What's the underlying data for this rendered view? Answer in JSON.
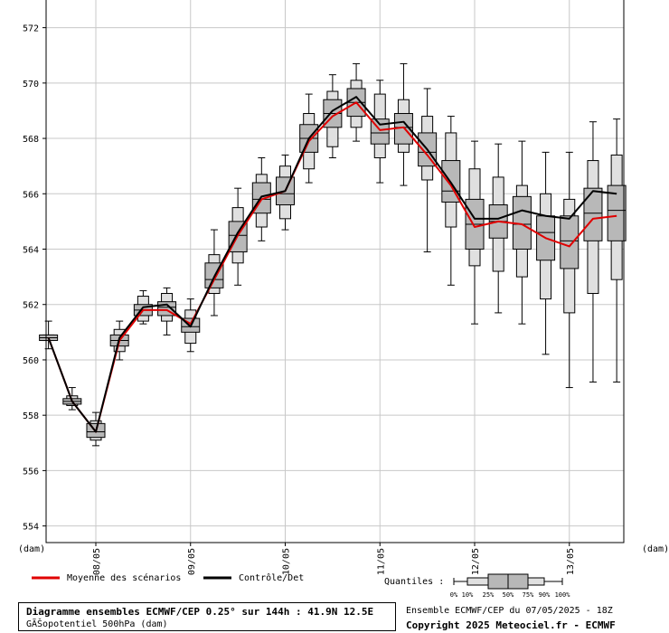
{
  "chart_data": {
    "type": "boxplot-ensemble",
    "ylabel_left": "(dam)",
    "ylabel_right": "(dam)",
    "ylim": [
      553.4,
      573
    ],
    "yticks": [
      554,
      556,
      558,
      560,
      562,
      564,
      566,
      568,
      570,
      572
    ],
    "xticks": [
      {
        "label": "08/05",
        "x": 2
      },
      {
        "label": "09/05",
        "x": 6
      },
      {
        "label": "10/05",
        "x": 10
      },
      {
        "label": "11/05",
        "x": 14
      },
      {
        "label": "12/05",
        "x": 18
      },
      {
        "label": "13/05",
        "x": 22
      }
    ],
    "xlim": [
      -0.1,
      24.3
    ],
    "grid": true,
    "boxes": [
      {
        "x": 0,
        "p0": 560.4,
        "p10": 560.7,
        "p25": 560.7,
        "p50": 560.8,
        "p75": 560.9,
        "p90": 560.9,
        "p100": 561.4
      },
      {
        "x": 1,
        "p0": 558.2,
        "p10": 558.35,
        "p25": 558.4,
        "p50": 558.5,
        "p75": 558.6,
        "p90": 558.7,
        "p100": 559.0
      },
      {
        "x": 2,
        "p0": 556.9,
        "p10": 557.1,
        "p25": 557.2,
        "p50": 557.4,
        "p75": 557.7,
        "p90": 557.8,
        "p100": 558.1
      },
      {
        "x": 3,
        "p0": 560.0,
        "p10": 560.3,
        "p25": 560.5,
        "p50": 560.7,
        "p75": 560.9,
        "p90": 561.1,
        "p100": 561.4
      },
      {
        "x": 4,
        "p0": 561.3,
        "p10": 561.4,
        "p25": 561.6,
        "p50": 561.8,
        "p75": 562.0,
        "p90": 562.3,
        "p100": 562.5
      },
      {
        "x": 5,
        "p0": 560.9,
        "p10": 561.4,
        "p25": 561.6,
        "p50": 561.9,
        "p75": 562.1,
        "p90": 562.4,
        "p100": 562.6
      },
      {
        "x": 6,
        "p0": 560.3,
        "p10": 560.6,
        "p25": 561.0,
        "p50": 561.2,
        "p75": 561.5,
        "p90": 561.8,
        "p100": 562.2
      },
      {
        "x": 7,
        "p0": 561.6,
        "p10": 562.4,
        "p25": 562.6,
        "p50": 562.9,
        "p75": 563.5,
        "p90": 563.8,
        "p100": 564.7
      },
      {
        "x": 8,
        "p0": 562.7,
        "p10": 563.5,
        "p25": 563.9,
        "p50": 564.5,
        "p75": 565.0,
        "p90": 565.5,
        "p100": 566.2
      },
      {
        "x": 9,
        "p0": 564.3,
        "p10": 564.8,
        "p25": 565.3,
        "p50": 565.8,
        "p75": 566.4,
        "p90": 566.7,
        "p100": 567.3
      },
      {
        "x": 10,
        "p0": 564.7,
        "p10": 565.1,
        "p25": 565.6,
        "p50": 566.0,
        "p75": 566.6,
        "p90": 567.0,
        "p100": 567.4
      },
      {
        "x": 11,
        "p0": 566.4,
        "p10": 566.9,
        "p25": 567.5,
        "p50": 568.0,
        "p75": 568.5,
        "p90": 568.9,
        "p100": 569.6
      },
      {
        "x": 12,
        "p0": 567.3,
        "p10": 567.7,
        "p25": 568.4,
        "p50": 568.9,
        "p75": 569.4,
        "p90": 569.7,
        "p100": 570.3
      },
      {
        "x": 13,
        "p0": 567.9,
        "p10": 568.4,
        "p25": 568.8,
        "p50": 569.3,
        "p75": 569.8,
        "p90": 570.1,
        "p100": 570.7
      },
      {
        "x": 14,
        "p0": 566.4,
        "p10": 567.3,
        "p25": 567.8,
        "p50": 568.2,
        "p75": 568.7,
        "p90": 569.6,
        "p100": 570.1
      },
      {
        "x": 15,
        "p0": 566.3,
        "p10": 567.5,
        "p25": 567.8,
        "p50": 568.4,
        "p75": 568.9,
        "p90": 569.4,
        "p100": 570.7
      },
      {
        "x": 16,
        "p0": 563.9,
        "p10": 566.5,
        "p25": 567.0,
        "p50": 567.5,
        "p75": 568.2,
        "p90": 568.8,
        "p100": 569.8
      },
      {
        "x": 17,
        "p0": 562.7,
        "p10": 564.8,
        "p25": 565.7,
        "p50": 566.1,
        "p75": 567.2,
        "p90": 568.2,
        "p100": 568.8
      },
      {
        "x": 18,
        "p0": 561.3,
        "p10": 563.4,
        "p25": 564.0,
        "p50": 564.9,
        "p75": 565.8,
        "p90": 566.9,
        "p100": 567.9
      },
      {
        "x": 19,
        "p0": 561.7,
        "p10": 563.2,
        "p25": 564.4,
        "p50": 565.0,
        "p75": 565.6,
        "p90": 566.6,
        "p100": 567.8
      },
      {
        "x": 20,
        "p0": 561.3,
        "p10": 563.0,
        "p25": 564.0,
        "p50": 564.9,
        "p75": 565.9,
        "p90": 566.3,
        "p100": 567.9
      },
      {
        "x": 21,
        "p0": 560.2,
        "p10": 562.2,
        "p25": 563.6,
        "p50": 564.6,
        "p75": 565.2,
        "p90": 566.0,
        "p100": 567.5
      },
      {
        "x": 22,
        "p0": 559.0,
        "p10": 561.7,
        "p25": 563.3,
        "p50": 564.3,
        "p75": 565.2,
        "p90": 565.8,
        "p100": 567.5
      },
      {
        "x": 23,
        "p0": 559.2,
        "p10": 562.4,
        "p25": 564.3,
        "p50": 565.3,
        "p75": 566.2,
        "p90": 567.2,
        "p100": 568.6
      },
      {
        "x": 24,
        "p0": 559.2,
        "p10": 562.9,
        "p25": 564.3,
        "p50": 565.4,
        "p75": 566.3,
        "p90": 567.4,
        "p100": 568.7
      }
    ],
    "series": [
      {
        "name": "Moyenne des scénarios",
        "color": "#e00000",
        "values": [
          560.8,
          558.5,
          557.4,
          560.7,
          561.8,
          561.8,
          561.3,
          562.9,
          564.5,
          565.8,
          566.1,
          567.9,
          568.8,
          569.3,
          568.3,
          568.4,
          567.4,
          566.3,
          564.8,
          565.0,
          564.9,
          564.4,
          564.1,
          565.1,
          565.2
        ]
      },
      {
        "name": "Contrôle/Det",
        "color": "#000000",
        "values": [
          560.8,
          558.5,
          557.4,
          560.8,
          561.9,
          562.0,
          561.2,
          563.0,
          564.6,
          565.9,
          566.1,
          568.0,
          569.0,
          569.5,
          568.5,
          568.6,
          567.6,
          566.4,
          565.1,
          565.1,
          565.4,
          565.2,
          565.1,
          566.1,
          566.0
        ]
      }
    ],
    "legend": {
      "mean_label": "Moyenne des scénarios",
      "control_label": "Contrôle/Det",
      "quantiles_label": "Quantiles :",
      "quantile_ticks": [
        "0%",
        "10%",
        "25%",
        "50%",
        "75%",
        "90%",
        "100%"
      ]
    }
  },
  "footer": {
    "title": "Diagramme ensembles ECMWF/CEP 0.25° sur 144h : 41.9N 12.5E",
    "subtitle": "GÃŠopotentiel 500hPa (dam)",
    "ensemble": "Ensemble ECMWF/CEP du 07/05/2025 - 18Z",
    "copyright": "Copyright 2025 Meteociel.fr - ECMWF"
  }
}
